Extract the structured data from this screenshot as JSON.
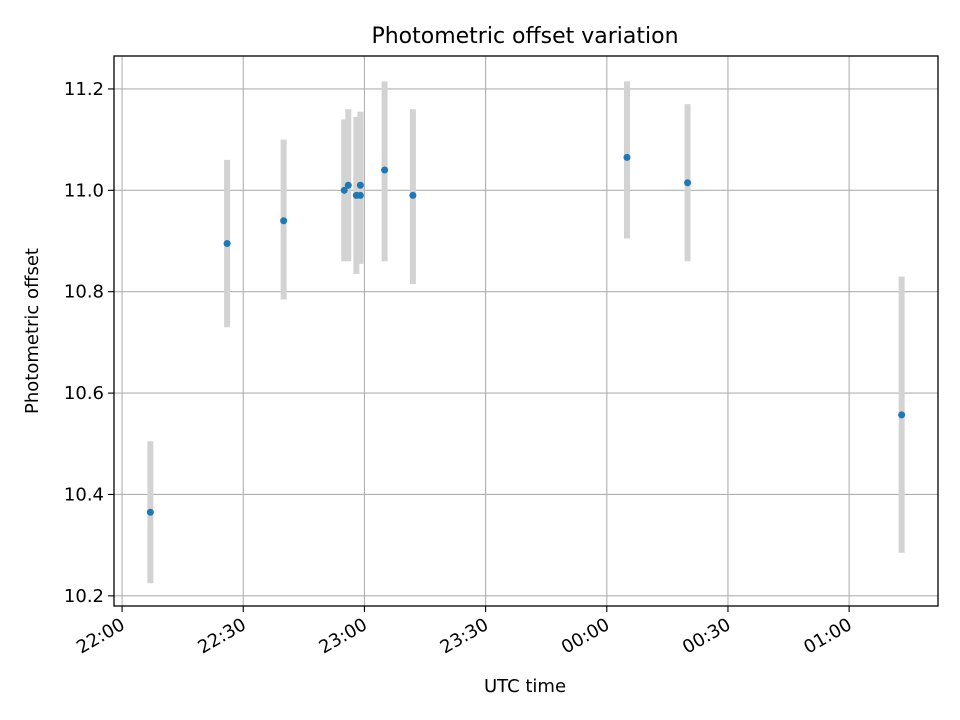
{
  "chart_data": {
    "type": "scatter",
    "title": "Photometric offset variation",
    "xlabel": "UTC time",
    "ylabel": "Photometric offset",
    "x_unit": "UTC time (HH:MM)",
    "xlim": [
      "21:58",
      "01:22"
    ],
    "ylim": [
      10.18,
      11.265
    ],
    "x_ticks": [
      "22:00",
      "22:30",
      "23:00",
      "23:30",
      "00:00",
      "00:30",
      "01:00"
    ],
    "y_ticks": [
      10.2,
      10.4,
      10.6,
      10.8,
      11.0,
      11.2
    ],
    "grid": true,
    "point_color": "#1f77b4",
    "errorbar_color": "#d3d3d3",
    "points": [
      {
        "x": "22:07",
        "y": 10.365,
        "y_low": 10.225,
        "y_high": 10.505
      },
      {
        "x": "22:26",
        "y": 10.895,
        "y_low": 10.73,
        "y_high": 11.06
      },
      {
        "x": "22:40",
        "y": 10.94,
        "y_low": 10.785,
        "y_high": 11.1
      },
      {
        "x": "22:55",
        "y": 11.0,
        "y_low": 10.86,
        "y_high": 11.14
      },
      {
        "x": "22:56",
        "y": 11.01,
        "y_low": 10.86,
        "y_high": 11.16
      },
      {
        "x": "22:58",
        "y": 10.99,
        "y_low": 10.835,
        "y_high": 11.145
      },
      {
        "x": "22:59",
        "y": 10.99,
        "y_low": 10.855,
        "y_high": 11.135
      },
      {
        "x": "22:59",
        "y": 11.01,
        "y_low": 10.86,
        "y_high": 11.155
      },
      {
        "x": "23:05",
        "y": 11.04,
        "y_low": 10.86,
        "y_high": 11.215
      },
      {
        "x": "23:12",
        "y": 10.99,
        "y_low": 10.815,
        "y_high": 11.16
      },
      {
        "x": "00:05",
        "y": 11.065,
        "y_low": 10.905,
        "y_high": 11.215
      },
      {
        "x": "00:20",
        "y": 11.015,
        "y_low": 10.86,
        "y_high": 11.17
      },
      {
        "x": "01:13",
        "y": 10.557,
        "y_low": 10.285,
        "y_high": 10.83
      }
    ]
  }
}
